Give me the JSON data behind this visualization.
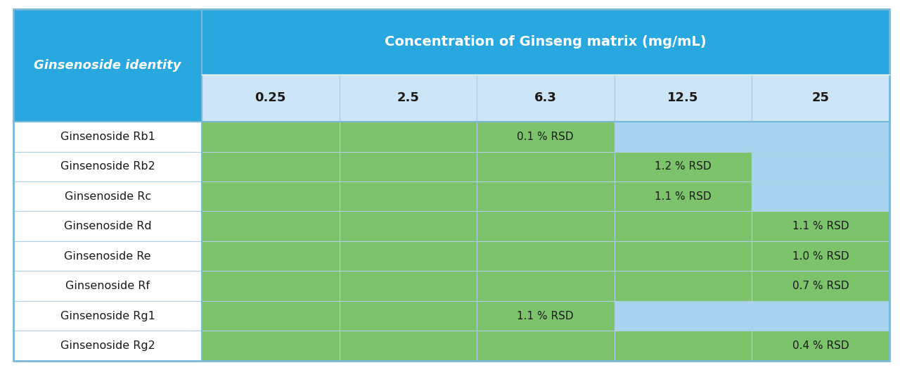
{
  "title": "Concentration of Ginseng matrix (mg/mL)",
  "row_header": "Ginsenoside identity",
  "col_headers": [
    "0.25",
    "2.5",
    "6.3",
    "12.5",
    "25"
  ],
  "rows": [
    "Ginsenoside Rb1",
    "Ginsenoside Rb2",
    "Ginsenoside Rc",
    "Ginsenoside Rd",
    "Ginsenoside Re",
    "Ginsenoside Rf",
    "Ginsenoside Rg1",
    "Ginsenoside Rg2"
  ],
  "cell_colors": [
    [
      "#7dc36b",
      "#7dc36b",
      "#7dc36b",
      "#a8d4ef",
      "#a8d4ef"
    ],
    [
      "#7dc36b",
      "#7dc36b",
      "#7dc36b",
      "#7dc36b",
      "#a8d4ef"
    ],
    [
      "#7dc36b",
      "#7dc36b",
      "#7dc36b",
      "#7dc36b",
      "#a8d4ef"
    ],
    [
      "#7dc36b",
      "#7dc36b",
      "#7dc36b",
      "#7dc36b",
      "#7dc36b"
    ],
    [
      "#7dc36b",
      "#7dc36b",
      "#7dc36b",
      "#7dc36b",
      "#7dc36b"
    ],
    [
      "#7dc36b",
      "#7dc36b",
      "#7dc36b",
      "#7dc36b",
      "#7dc36b"
    ],
    [
      "#7dc36b",
      "#7dc36b",
      "#7dc36b",
      "#a8d4ef",
      "#a8d4ef"
    ],
    [
      "#7dc36b",
      "#7dc36b",
      "#7dc36b",
      "#7dc36b",
      "#7dc36b"
    ]
  ],
  "cell_text": [
    [
      "",
      "",
      "0.1 % RSD",
      "",
      ""
    ],
    [
      "",
      "",
      "",
      "1.2 % RSD",
      ""
    ],
    [
      "",
      "",
      "",
      "1.1 % RSD",
      ""
    ],
    [
      "",
      "",
      "",
      "",
      "1.1 % RSD"
    ],
    [
      "",
      "",
      "",
      "",
      "1.0 % RSD"
    ],
    [
      "",
      "",
      "",
      "",
      "0.7 % RSD"
    ],
    [
      "",
      "",
      "1.1 % RSD",
      "",
      ""
    ],
    [
      "",
      "",
      "",
      "",
      "0.4 % RSD"
    ]
  ],
  "top_header_bg": "#29a8e0",
  "top_header_text_color": "#ffffff",
  "sub_header_bg": "#cce6f7",
  "sub_header_text_color": "#1a1a1a",
  "row_label_bg": "#ffffff",
  "row_label_color": "#1a1a1a",
  "cell_text_color": "#1a1a1a",
  "grid_color": "#b0cfe8",
  "outer_border_color": "#7ab8d9",
  "figure_bg": "#ffffff"
}
